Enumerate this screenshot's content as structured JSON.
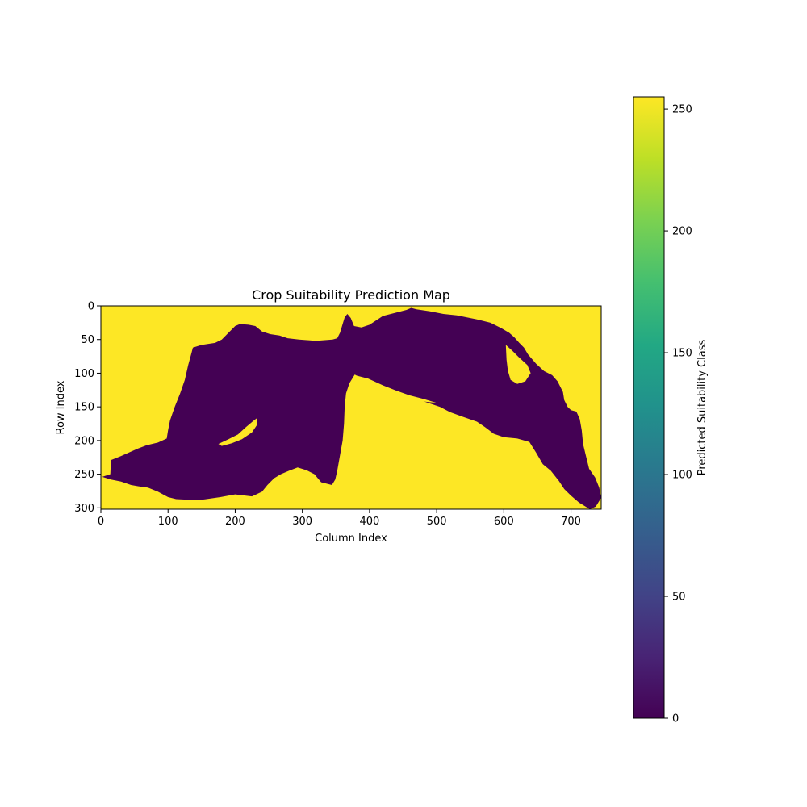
{
  "chart_data": {
    "type": "heatmap",
    "title": "Crop Suitability Prediction Map",
    "xlabel": "Column Index",
    "ylabel": "Row Index",
    "xlim": [
      0,
      745
    ],
    "ylim": [
      302,
      0
    ],
    "x_ticks": [
      0,
      100,
      200,
      300,
      400,
      500,
      600,
      700
    ],
    "y_ticks": [
      0,
      50,
      100,
      150,
      200,
      250,
      300
    ],
    "colorscale": "viridis",
    "background_value": 255,
    "colors": {
      "class_0": "#440154",
      "class_255": "#fde725"
    },
    "regions": [
      {
        "value": 0,
        "outline": [
          [
            2,
            254
          ],
          [
            14,
            250
          ],
          [
            15,
            229
          ],
          [
            30,
            223
          ],
          [
            55,
            212
          ],
          [
            68,
            207
          ],
          [
            85,
            203
          ],
          [
            98,
            197
          ],
          [
            100,
            185
          ],
          [
            103,
            170
          ],
          [
            110,
            150
          ],
          [
            118,
            130
          ],
          [
            125,
            110
          ],
          [
            130,
            88
          ],
          [
            135,
            70
          ],
          [
            137,
            62
          ],
          [
            150,
            58
          ],
          [
            170,
            55
          ],
          [
            180,
            50
          ],
          [
            190,
            40
          ],
          [
            200,
            30
          ],
          [
            207,
            27
          ],
          [
            220,
            28
          ],
          [
            230,
            30
          ],
          [
            240,
            38
          ],
          [
            252,
            42
          ],
          [
            266,
            44
          ],
          [
            278,
            48
          ],
          [
            295,
            50
          ],
          [
            320,
            52
          ],
          [
            345,
            50
          ],
          [
            352,
            48
          ],
          [
            356,
            40
          ],
          [
            363,
            17
          ],
          [
            367,
            12
          ],
          [
            372,
            18
          ],
          [
            377,
            30
          ],
          [
            388,
            32
          ],
          [
            400,
            28
          ],
          [
            420,
            15
          ],
          [
            440,
            10
          ],
          [
            455,
            6
          ],
          [
            462,
            3
          ],
          [
            470,
            5
          ],
          [
            490,
            8
          ],
          [
            510,
            12
          ],
          [
            530,
            14
          ],
          [
            560,
            20
          ],
          [
            580,
            25
          ],
          [
            596,
            33
          ],
          [
            608,
            40
          ],
          [
            616,
            47
          ],
          [
            623,
            55
          ],
          [
            630,
            62
          ],
          [
            636,
            72
          ],
          [
            648,
            86
          ],
          [
            660,
            97
          ],
          [
            672,
            103
          ],
          [
            680,
            112
          ],
          [
            688,
            128
          ],
          [
            690,
            140
          ],
          [
            695,
            150
          ],
          [
            700,
            155
          ],
          [
            708,
            157
          ],
          [
            713,
            168
          ],
          [
            716,
            185
          ],
          [
            718,
            205
          ],
          [
            722,
            222
          ],
          [
            727,
            242
          ],
          [
            736,
            255
          ],
          [
            742,
            270
          ],
          [
            745,
            285
          ],
          [
            737,
            298
          ],
          [
            728,
            302
          ],
          [
            712,
            292
          ],
          [
            700,
            282
          ],
          [
            690,
            272
          ],
          [
            682,
            260
          ],
          [
            670,
            245
          ],
          [
            658,
            235
          ],
          [
            648,
            218
          ],
          [
            638,
            202
          ],
          [
            620,
            197
          ],
          [
            600,
            195
          ],
          [
            585,
            190
          ],
          [
            572,
            180
          ],
          [
            560,
            172
          ],
          [
            540,
            165
          ],
          [
            520,
            158
          ],
          [
            505,
            150
          ],
          [
            490,
            145
          ],
          [
            475,
            140
          ],
          [
            460,
            135
          ],
          [
            445,
            128
          ],
          [
            420,
            120
          ],
          [
            400,
            112
          ],
          [
            385,
            106
          ],
          [
            378,
            102
          ],
          [
            370,
            115
          ],
          [
            365,
            130
          ],
          [
            363,
            150
          ],
          [
            362,
            175
          ],
          [
            360,
            200
          ],
          [
            356,
            222
          ],
          [
            352,
            245
          ],
          [
            349,
            258
          ],
          [
            344,
            266
          ],
          [
            328,
            262
          ],
          [
            318,
            250
          ],
          [
            306,
            244
          ],
          [
            293,
            240
          ],
          [
            280,
            245
          ],
          [
            268,
            250
          ],
          [
            258,
            256
          ],
          [
            248,
            266
          ],
          [
            240,
            276
          ],
          [
            225,
            283
          ],
          [
            200,
            280
          ],
          [
            178,
            284
          ],
          [
            150,
            288
          ],
          [
            130,
            288
          ],
          [
            112,
            287
          ],
          [
            100,
            284
          ],
          [
            85,
            276
          ],
          [
            70,
            270
          ],
          [
            56,
            268
          ],
          [
            45,
            266
          ],
          [
            30,
            261
          ],
          [
            15,
            258
          ]
        ]
      },
      {
        "value": 255,
        "outline": [
          [
            175,
            205
          ],
          [
            190,
            198
          ],
          [
            204,
            191
          ],
          [
            216,
            180
          ],
          [
            228,
            170
          ],
          [
            232,
            167
          ],
          [
            233,
            176
          ],
          [
            225,
            188
          ],
          [
            210,
            198
          ],
          [
            195,
            204
          ],
          [
            180,
            208
          ]
        ]
      },
      {
        "value": 255,
        "outline": [
          [
            603,
            58
          ],
          [
            612,
            66
          ],
          [
            622,
            76
          ],
          [
            635,
            88
          ],
          [
            640,
            100
          ],
          [
            632,
            112
          ],
          [
            620,
            116
          ],
          [
            610,
            110
          ],
          [
            606,
            96
          ],
          [
            604,
            80
          ]
        ]
      },
      {
        "value": 255,
        "outline": [
          [
            378,
            103
          ],
          [
            398,
            108
          ],
          [
            420,
            118
          ],
          [
            440,
            126
          ],
          [
            460,
            133
          ],
          [
            480,
            138
          ],
          [
            500,
            144
          ],
          [
            480,
            142
          ],
          [
            455,
            137
          ],
          [
            430,
            130
          ],
          [
            405,
            122
          ],
          [
            388,
            115
          ],
          [
            380,
            110
          ]
        ]
      }
    ],
    "colorbar": {
      "label": "Predicted Suitability Class",
      "range": [
        0,
        255
      ],
      "ticks": [
        0,
        50,
        100,
        150,
        200,
        250
      ]
    }
  }
}
